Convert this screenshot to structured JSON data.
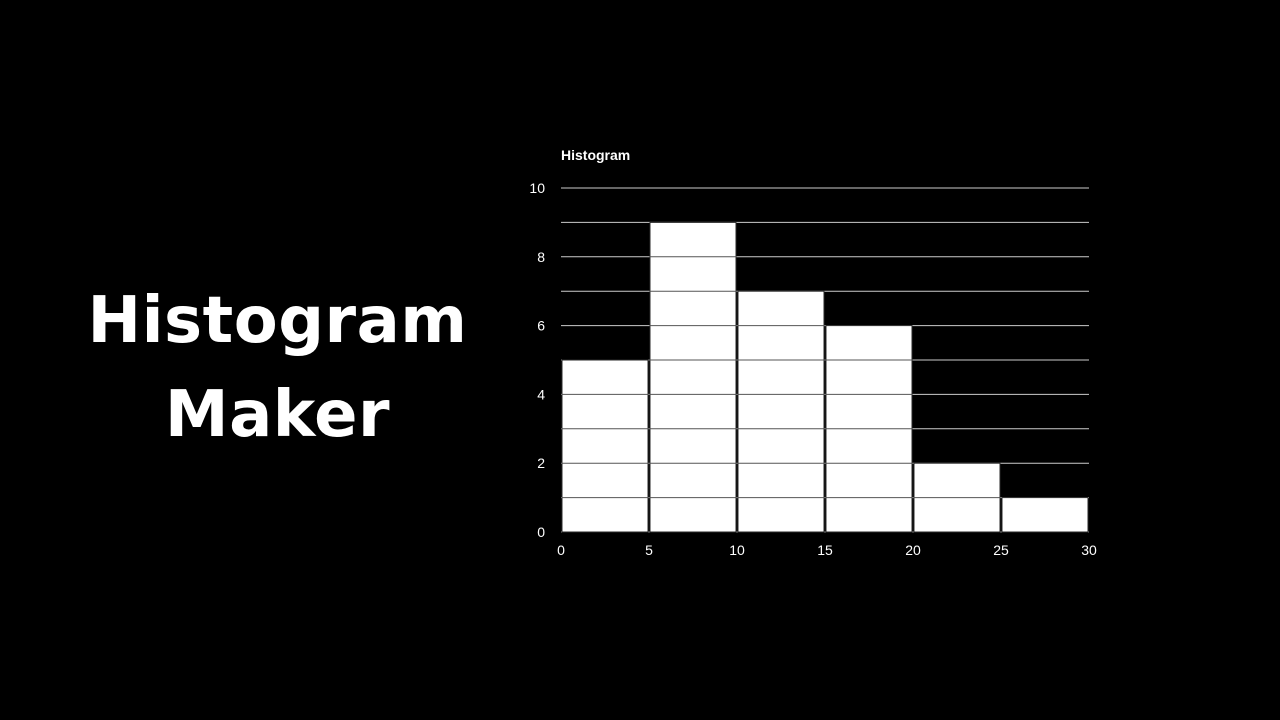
{
  "hero": {
    "line1": "Histogram",
    "line2": "Maker"
  },
  "colors": {
    "background": "#000000",
    "bar_fill": "#ffffff",
    "bar_stroke": "#000000",
    "gridline": "#cccccc",
    "text": "#ffffff"
  },
  "chart_data": {
    "type": "bar",
    "title": "Histogram",
    "xlabel": "",
    "ylabel": "",
    "bins": [
      [
        0,
        5
      ],
      [
        5,
        10
      ],
      [
        10,
        15
      ],
      [
        15,
        20
      ],
      [
        20,
        25
      ],
      [
        25,
        30
      ]
    ],
    "values": [
      5,
      9,
      7,
      6,
      2,
      1
    ],
    "xlim": [
      0,
      30
    ],
    "ylim": [
      0,
      10
    ],
    "x_ticks": [
      "0",
      "5",
      "10",
      "15",
      "20",
      "25",
      "30"
    ],
    "y_ticks": [
      "0",
      "2",
      "4",
      "6",
      "8",
      "10"
    ],
    "minor_gridlines_every": 1,
    "grid": true,
    "legend": "none"
  }
}
